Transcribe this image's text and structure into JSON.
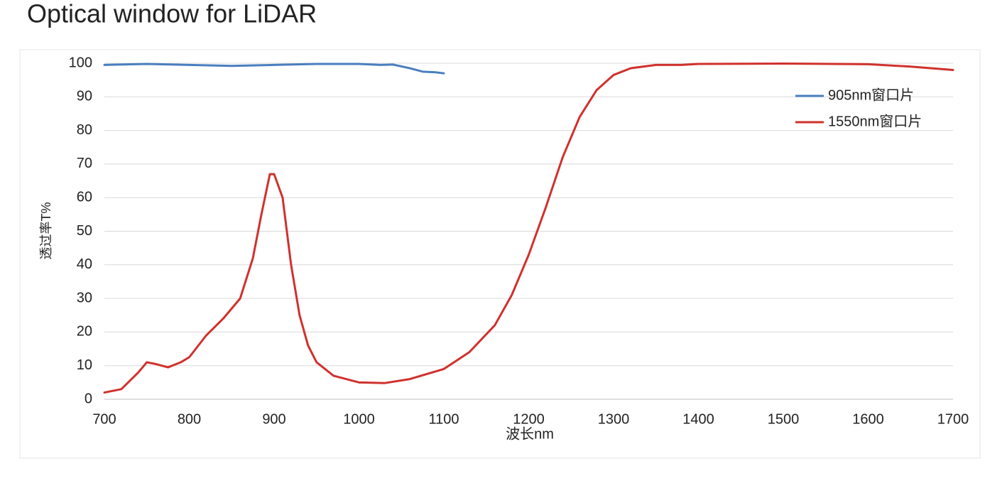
{
  "chart_data": {
    "type": "line",
    "title": "Optical window for LiDAR",
    "x_label": "波长nm",
    "y_label": "透过率T%",
    "xlim": [
      700,
      1700
    ],
    "xticks": [
      700,
      800,
      900,
      1000,
      1100,
      1200,
      1300,
      1400,
      1500,
      1600,
      1700
    ],
    "ylim": [
      0,
      100
    ],
    "yticks": [
      0,
      10,
      20,
      30,
      40,
      50,
      60,
      70,
      80,
      90,
      100
    ],
    "grid": true,
    "legend": "upper right",
    "series": [
      {
        "name": "905nm窗口片",
        "color": "#4a7ebf",
        "x": [
          700,
          750,
          800,
          850,
          900,
          950,
          1000,
          1025,
          1040,
          1060,
          1075,
          1090,
          1100
        ],
        "values": [
          99.5,
          99.8,
          99.5,
          99.2,
          99.5,
          99.8,
          99.8,
          99.5,
          99.6,
          98.5,
          97.5,
          97.3,
          97
        ]
      },
      {
        "name": "1550nm窗口片",
        "color": "#d0312d",
        "x": [
          700,
          720,
          740,
          750,
          760,
          775,
          790,
          800,
          820,
          840,
          860,
          875,
          885,
          895,
          900,
          910,
          920,
          930,
          940,
          950,
          970,
          1000,
          1030,
          1060,
          1100,
          1130,
          1160,
          1180,
          1200,
          1220,
          1240,
          1260,
          1280,
          1300,
          1320,
          1350,
          1380,
          1400,
          1500,
          1600,
          1650,
          1700
        ],
        "values": [
          2,
          3,
          8,
          11,
          10.5,
          9.5,
          11,
          12.5,
          19,
          24,
          30,
          42,
          55,
          67,
          67,
          60,
          40,
          25,
          16,
          11,
          7,
          5,
          4.8,
          6,
          9,
          14,
          22,
          31,
          43,
          57,
          72,
          84,
          92,
          96.5,
          98.5,
          99.5,
          99.5,
          99.8,
          99.9,
          99.7,
          99,
          98
        ]
      }
    ]
  }
}
